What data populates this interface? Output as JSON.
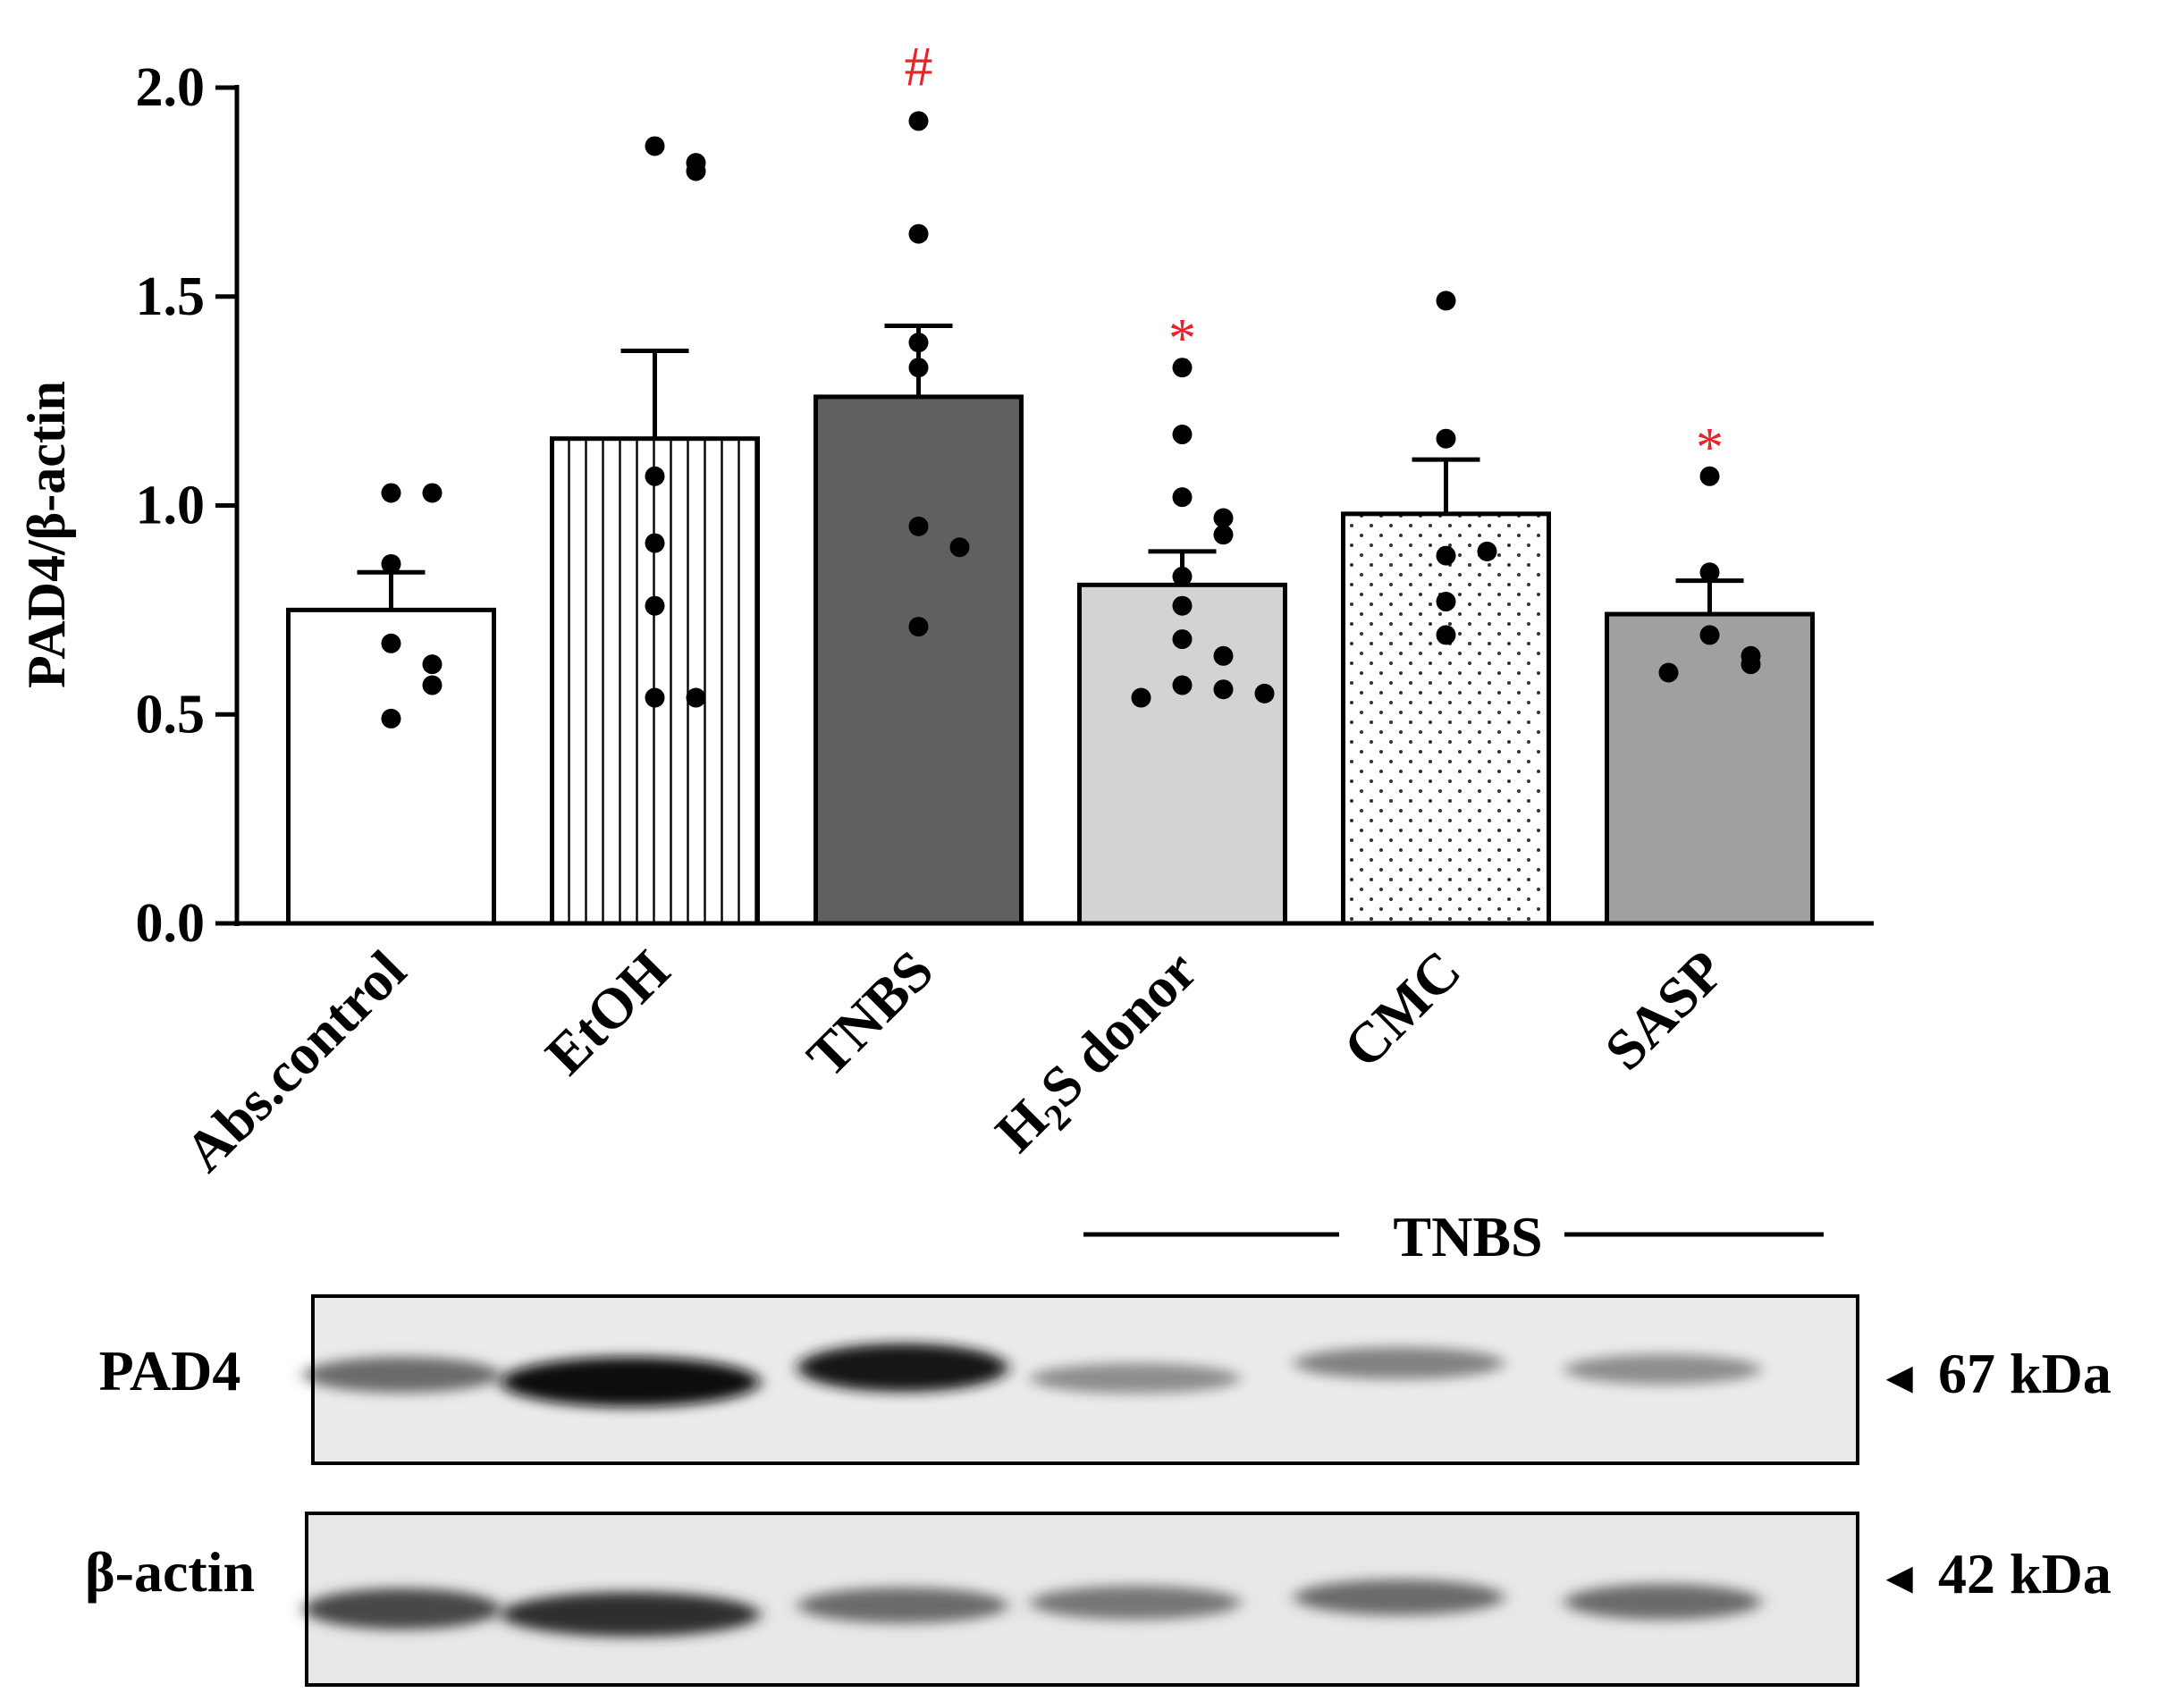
{
  "chart_data": {
    "type": "bar",
    "ylabel": "PAD4/β-actin",
    "ylim": [
      0,
      2.0
    ],
    "yticks": [
      "0.0",
      "0.5",
      "1.0",
      "1.5",
      "2.0"
    ],
    "ytick_values": [
      0,
      0.5,
      1.0,
      1.5,
      2.0
    ],
    "categories": [
      "Abs.control",
      "EtOH",
      "TNBS",
      "H2S donor",
      "CMC",
      "SASP"
    ],
    "means": [
      0.75,
      1.16,
      1.26,
      0.81,
      0.98,
      0.74
    ],
    "sem": [
      0.09,
      0.21,
      0.17,
      0.08,
      0.13,
      0.08
    ],
    "points": [
      [
        1.03,
        1.03,
        0.86,
        0.67,
        0.62,
        0.57,
        0.49
      ],
      [
        1.86,
        1.82,
        1.8,
        1.07,
        0.91,
        0.76,
        0.54,
        0.54
      ],
      [
        1.92,
        1.65,
        1.39,
        1.33,
        0.95,
        0.9,
        0.71
      ],
      [
        1.33,
        1.17,
        1.02,
        0.97,
        0.93,
        0.83,
        0.76,
        0.68,
        0.64,
        0.57,
        0.56,
        0.54,
        0.55
      ],
      [
        1.49,
        1.16,
        0.88,
        0.89,
        0.77,
        0.69
      ],
      [
        1.07,
        0.84,
        0.69,
        0.64,
        0.62,
        0.6
      ]
    ],
    "fills": [
      "#ffffff",
      "pattern-vertical-lines",
      "#606060",
      "#d3d3d3",
      "pattern-dots",
      "#a0a0a2"
    ],
    "significance": [
      {
        "category": "TNBS",
        "symbol": "#",
        "color": "#e8232a"
      },
      {
        "category": "H2S donor",
        "symbol": "*",
        "color": "#e8232a"
      },
      {
        "category": "SASP",
        "symbol": "*",
        "color": "#e8232a"
      }
    ]
  },
  "group_label": "TNBS",
  "blots": [
    {
      "protein": "PAD4",
      "marker": "67 kDa",
      "band_intensity": [
        0.55,
        0.95,
        0.9,
        0.4,
        0.45,
        0.4
      ]
    },
    {
      "protein": "β-actin",
      "marker": "42 kDa",
      "band_intensity": [
        0.7,
        0.8,
        0.55,
        0.5,
        0.55,
        0.55
      ]
    }
  ],
  "arrow_symbol": "◄"
}
